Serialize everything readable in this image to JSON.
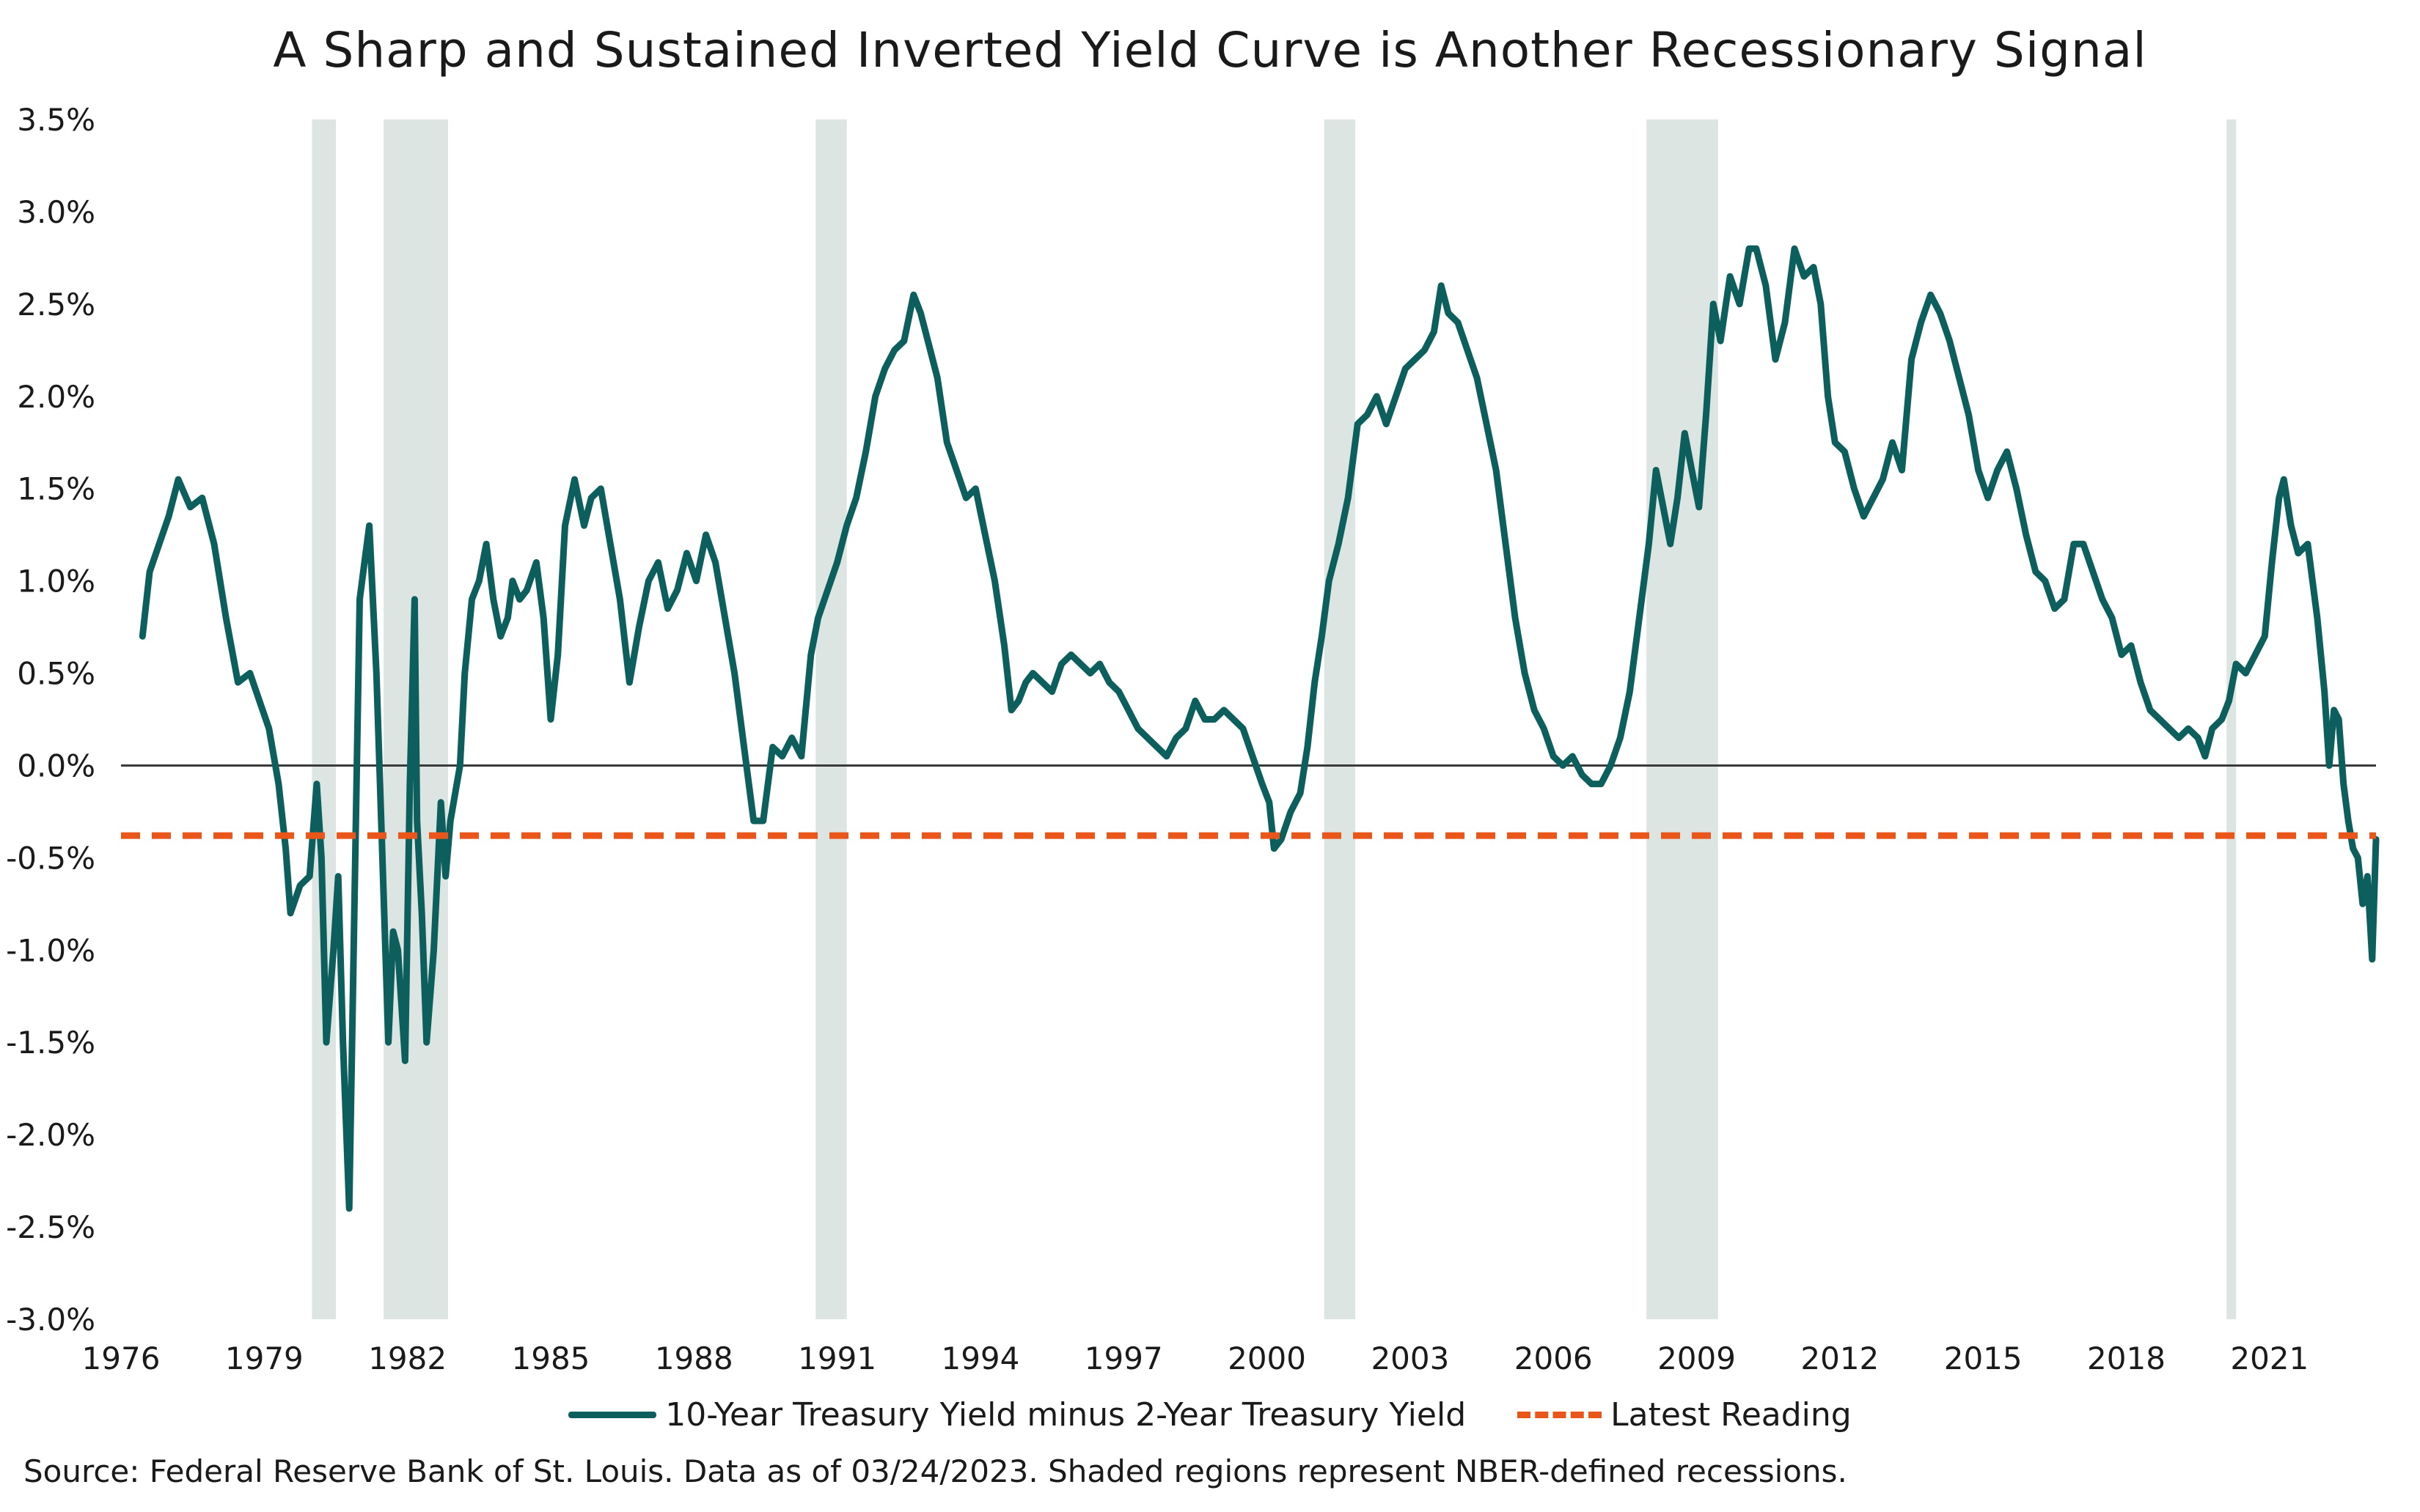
{
  "chart_data": {
    "type": "line",
    "title": "A Sharp and Sustained Inverted Yield Curve is Another Recessionary Signal",
    "xlabel": "",
    "ylabel": "",
    "x_tick_labels": [
      "1976",
      "1979",
      "1982",
      "1985",
      "1988",
      "1991",
      "1994",
      "1997",
      "2000",
      "2003",
      "2006",
      "2009",
      "2012",
      "2015",
      "2018",
      "2021"
    ],
    "y_tick_labels": [
      "3.5%",
      "3.0%",
      "2.5%",
      "2.0%",
      "1.5%",
      "1.0%",
      "0.5%",
      "0.0%",
      "-0.5%",
      "-1.0%",
      "-1.5%",
      "-2.0%",
      "-2.5%",
      "-3.0%"
    ],
    "xlim": [
      1976.0,
      2023.23
    ],
    "ylim": [
      -3.0,
      3.5
    ],
    "grid": false,
    "legend_position": "bottom",
    "recessions": [
      [
        1980.0,
        1980.5
      ],
      [
        1981.5,
        1982.85
      ],
      [
        1990.55,
        1991.2
      ],
      [
        2001.2,
        2001.85
      ],
      [
        2007.95,
        2009.45
      ],
      [
        2020.1,
        2020.3
      ]
    ],
    "series": [
      {
        "name": "10-Year Treasury Yield minus 2-Year Treasury Yield",
        "color": "#0c5f5c",
        "style": "solid",
        "points": [
          [
            1976.45,
            0.7
          ],
          [
            1976.6,
            1.05
          ],
          [
            1976.8,
            1.2
          ],
          [
            1977.0,
            1.35
          ],
          [
            1977.2,
            1.55
          ],
          [
            1977.45,
            1.4
          ],
          [
            1977.7,
            1.45
          ],
          [
            1977.95,
            1.2
          ],
          [
            1978.2,
            0.8
          ],
          [
            1978.45,
            0.45
          ],
          [
            1978.7,
            0.5
          ],
          [
            1978.9,
            0.35
          ],
          [
            1979.1,
            0.2
          ],
          [
            1979.3,
            -0.1
          ],
          [
            1979.45,
            -0.45
          ],
          [
            1979.55,
            -0.8
          ],
          [
            1979.75,
            -0.65
          ],
          [
            1979.95,
            -0.6
          ],
          [
            1980.1,
            -0.1
          ],
          [
            1980.2,
            -0.5
          ],
          [
            1980.3,
            -1.5
          ],
          [
            1980.45,
            -1.0
          ],
          [
            1980.55,
            -0.6
          ],
          [
            1980.65,
            -1.5
          ],
          [
            1980.78,
            -2.4
          ],
          [
            1980.9,
            -0.6
          ],
          [
            1981.0,
            0.9
          ],
          [
            1981.1,
            1.1
          ],
          [
            1981.2,
            1.3
          ],
          [
            1981.35,
            0.5
          ],
          [
            1981.5,
            -0.7
          ],
          [
            1981.6,
            -1.5
          ],
          [
            1981.7,
            -0.9
          ],
          [
            1981.8,
            -1.0
          ],
          [
            1981.95,
            -1.6
          ],
          [
            1982.05,
            -0.1
          ],
          [
            1982.15,
            0.9
          ],
          [
            1982.2,
            -0.3
          ],
          [
            1982.3,
            -0.8
          ],
          [
            1982.4,
            -1.5
          ],
          [
            1982.55,
            -1.0
          ],
          [
            1982.7,
            -0.2
          ],
          [
            1982.8,
            -0.6
          ],
          [
            1982.9,
            -0.3
          ],
          [
            1983.1,
            0.0
          ],
          [
            1983.2,
            0.5
          ],
          [
            1983.35,
            0.9
          ],
          [
            1983.5,
            1.0
          ],
          [
            1983.65,
            1.2
          ],
          [
            1983.8,
            0.9
          ],
          [
            1983.95,
            0.7
          ],
          [
            1984.1,
            0.8
          ],
          [
            1984.2,
            1.0
          ],
          [
            1984.35,
            0.9
          ],
          [
            1984.5,
            0.95
          ],
          [
            1984.7,
            1.1
          ],
          [
            1984.85,
            0.8
          ],
          [
            1985.0,
            0.25
          ],
          [
            1985.15,
            0.6
          ],
          [
            1985.3,
            1.3
          ],
          [
            1985.5,
            1.55
          ],
          [
            1985.7,
            1.3
          ],
          [
            1985.85,
            1.45
          ],
          [
            1986.05,
            1.5
          ],
          [
            1986.25,
            1.2
          ],
          [
            1986.45,
            0.9
          ],
          [
            1986.65,
            0.45
          ],
          [
            1986.85,
            0.75
          ],
          [
            1987.05,
            1.0
          ],
          [
            1987.25,
            1.1
          ],
          [
            1987.45,
            0.85
          ],
          [
            1987.65,
            0.95
          ],
          [
            1987.85,
            1.15
          ],
          [
            1988.05,
            1.0
          ],
          [
            1988.25,
            1.25
          ],
          [
            1988.45,
            1.1
          ],
          [
            1988.65,
            0.8
          ],
          [
            1988.85,
            0.5
          ],
          [
            1989.05,
            0.1
          ],
          [
            1989.25,
            -0.3
          ],
          [
            1989.45,
            -0.3
          ],
          [
            1989.65,
            0.1
          ],
          [
            1989.85,
            0.05
          ],
          [
            1990.05,
            0.15
          ],
          [
            1990.25,
            0.05
          ],
          [
            1990.45,
            0.6
          ],
          [
            1990.6,
            0.8
          ],
          [
            1990.8,
            0.95
          ],
          [
            1991.0,
            1.1
          ],
          [
            1991.2,
            1.3
          ],
          [
            1991.4,
            1.45
          ],
          [
            1991.6,
            1.7
          ],
          [
            1991.8,
            2.0
          ],
          [
            1992.0,
            2.15
          ],
          [
            1992.2,
            2.25
          ],
          [
            1992.4,
            2.3
          ],
          [
            1992.6,
            2.55
          ],
          [
            1992.75,
            2.45
          ],
          [
            1992.9,
            2.3
          ],
          [
            1993.1,
            2.1
          ],
          [
            1993.3,
            1.75
          ],
          [
            1993.5,
            1.6
          ],
          [
            1993.7,
            1.45
          ],
          [
            1993.9,
            1.5
          ],
          [
            1994.1,
            1.25
          ],
          [
            1994.3,
            1.0
          ],
          [
            1994.5,
            0.65
          ],
          [
            1994.65,
            0.3
          ],
          [
            1994.8,
            0.35
          ],
          [
            1994.95,
            0.45
          ],
          [
            1995.1,
            0.5
          ],
          [
            1995.3,
            0.45
          ],
          [
            1995.5,
            0.4
          ],
          [
            1995.7,
            0.55
          ],
          [
            1995.9,
            0.6
          ],
          [
            1996.1,
            0.55
          ],
          [
            1996.3,
            0.5
          ],
          [
            1996.5,
            0.55
          ],
          [
            1996.7,
            0.45
          ],
          [
            1996.9,
            0.4
          ],
          [
            1997.1,
            0.3
          ],
          [
            1997.3,
            0.2
          ],
          [
            1997.5,
            0.15
          ],
          [
            1997.7,
            0.1
          ],
          [
            1997.9,
            0.05
          ],
          [
            1998.1,
            0.15
          ],
          [
            1998.3,
            0.2
          ],
          [
            1998.5,
            0.35
          ],
          [
            1998.7,
            0.25
          ],
          [
            1998.9,
            0.25
          ],
          [
            1999.1,
            0.3
          ],
          [
            1999.3,
            0.25
          ],
          [
            1999.5,
            0.2
          ],
          [
            1999.7,
            0.05
          ],
          [
            1999.9,
            -0.1
          ],
          [
            2000.05,
            -0.2
          ],
          [
            2000.15,
            -0.45
          ],
          [
            2000.3,
            -0.4
          ],
          [
            2000.5,
            -0.25
          ],
          [
            2000.7,
            -0.15
          ],
          [
            2000.85,
            0.1
          ],
          [
            2001.0,
            0.45
          ],
          [
            2001.15,
            0.7
          ],
          [
            2001.3,
            1.0
          ],
          [
            2001.5,
            1.2
          ],
          [
            2001.7,
            1.45
          ],
          [
            2001.9,
            1.85
          ],
          [
            2002.1,
            1.9
          ],
          [
            2002.3,
            2.0
          ],
          [
            2002.5,
            1.85
          ],
          [
            2002.7,
            2.0
          ],
          [
            2002.9,
            2.15
          ],
          [
            2003.1,
            2.2
          ],
          [
            2003.3,
            2.25
          ],
          [
            2003.5,
            2.35
          ],
          [
            2003.65,
            2.6
          ],
          [
            2003.8,
            2.45
          ],
          [
            2004.0,
            2.4
          ],
          [
            2004.2,
            2.25
          ],
          [
            2004.4,
            2.1
          ],
          [
            2004.6,
            1.85
          ],
          [
            2004.8,
            1.6
          ],
          [
            2005.0,
            1.2
          ],
          [
            2005.2,
            0.8
          ],
          [
            2005.4,
            0.5
          ],
          [
            2005.6,
            0.3
          ],
          [
            2005.8,
            0.2
          ],
          [
            2006.0,
            0.05
          ],
          [
            2006.2,
            0.0
          ],
          [
            2006.4,
            0.05
          ],
          [
            2006.6,
            -0.05
          ],
          [
            2006.8,
            -0.1
          ],
          [
            2007.0,
            -0.1
          ],
          [
            2007.2,
            0.0
          ],
          [
            2007.4,
            0.15
          ],
          [
            2007.6,
            0.4
          ],
          [
            2007.8,
            0.8
          ],
          [
            2008.0,
            1.2
          ],
          [
            2008.15,
            1.6
          ],
          [
            2008.3,
            1.4
          ],
          [
            2008.45,
            1.2
          ],
          [
            2008.6,
            1.45
          ],
          [
            2008.75,
            1.8
          ],
          [
            2008.9,
            1.6
          ],
          [
            2009.05,
            1.4
          ],
          [
            2009.2,
            1.9
          ],
          [
            2009.35,
            2.5
          ],
          [
            2009.5,
            2.3
          ],
          [
            2009.7,
            2.65
          ],
          [
            2009.9,
            2.5
          ],
          [
            2010.1,
            2.8
          ],
          [
            2010.25,
            2.8
          ],
          [
            2010.45,
            2.6
          ],
          [
            2010.65,
            2.2
          ],
          [
            2010.85,
            2.4
          ],
          [
            2011.05,
            2.8
          ],
          [
            2011.25,
            2.65
          ],
          [
            2011.45,
            2.7
          ],
          [
            2011.6,
            2.5
          ],
          [
            2011.75,
            2.0
          ],
          [
            2011.9,
            1.75
          ],
          [
            2012.1,
            1.7
          ],
          [
            2012.3,
            1.5
          ],
          [
            2012.5,
            1.35
          ],
          [
            2012.7,
            1.45
          ],
          [
            2012.9,
            1.55
          ],
          [
            2013.1,
            1.75
          ],
          [
            2013.3,
            1.6
          ],
          [
            2013.5,
            2.2
          ],
          [
            2013.7,
            2.4
          ],
          [
            2013.9,
            2.55
          ],
          [
            2014.1,
            2.45
          ],
          [
            2014.3,
            2.3
          ],
          [
            2014.5,
            2.1
          ],
          [
            2014.7,
            1.9
          ],
          [
            2014.9,
            1.6
          ],
          [
            2015.1,
            1.45
          ],
          [
            2015.3,
            1.6
          ],
          [
            2015.5,
            1.7
          ],
          [
            2015.7,
            1.5
          ],
          [
            2015.9,
            1.25
          ],
          [
            2016.1,
            1.05
          ],
          [
            2016.3,
            1.0
          ],
          [
            2016.5,
            0.85
          ],
          [
            2016.7,
            0.9
          ],
          [
            2016.9,
            1.2
          ],
          [
            2017.1,
            1.2
          ],
          [
            2017.3,
            1.05
          ],
          [
            2017.5,
            0.9
          ],
          [
            2017.7,
            0.8
          ],
          [
            2017.9,
            0.6
          ],
          [
            2018.1,
            0.65
          ],
          [
            2018.3,
            0.45
          ],
          [
            2018.5,
            0.3
          ],
          [
            2018.7,
            0.25
          ],
          [
            2018.9,
            0.2
          ],
          [
            2019.1,
            0.15
          ],
          [
            2019.3,
            0.2
          ],
          [
            2019.5,
            0.15
          ],
          [
            2019.65,
            0.05
          ],
          [
            2019.8,
            0.2
          ],
          [
            2020.0,
            0.25
          ],
          [
            2020.15,
            0.35
          ],
          [
            2020.3,
            0.55
          ],
          [
            2020.5,
            0.5
          ],
          [
            2020.7,
            0.6
          ],
          [
            2020.9,
            0.7
          ],
          [
            2021.05,
            1.1
          ],
          [
            2021.2,
            1.45
          ],
          [
            2021.3,
            1.55
          ],
          [
            2021.45,
            1.3
          ],
          [
            2021.6,
            1.15
          ],
          [
            2021.8,
            1.2
          ],
          [
            2022.0,
            0.8
          ],
          [
            2022.15,
            0.4
          ],
          [
            2022.25,
            0.0
          ],
          [
            2022.35,
            0.3
          ],
          [
            2022.45,
            0.25
          ],
          [
            2022.55,
            -0.1
          ],
          [
            2022.65,
            -0.3
          ],
          [
            2022.75,
            -0.45
          ],
          [
            2022.85,
            -0.5
          ],
          [
            2022.95,
            -0.75
          ],
          [
            2023.05,
            -0.6
          ],
          [
            2023.15,
            -1.05
          ],
          [
            2023.23,
            -0.4
          ]
        ]
      },
      {
        "name": "Latest Reading",
        "color": "#ea5519",
        "style": "dashed",
        "value": -0.38
      }
    ]
  },
  "legend": {
    "series1": "10-Year Treasury Yield minus 2-Year Treasury Yield",
    "series2": "Latest Reading"
  },
  "source_note": "Source: Federal Reserve Bank of St. Louis. Data as of 03/24/2023. Shaded regions represent NBER-defined recessions."
}
